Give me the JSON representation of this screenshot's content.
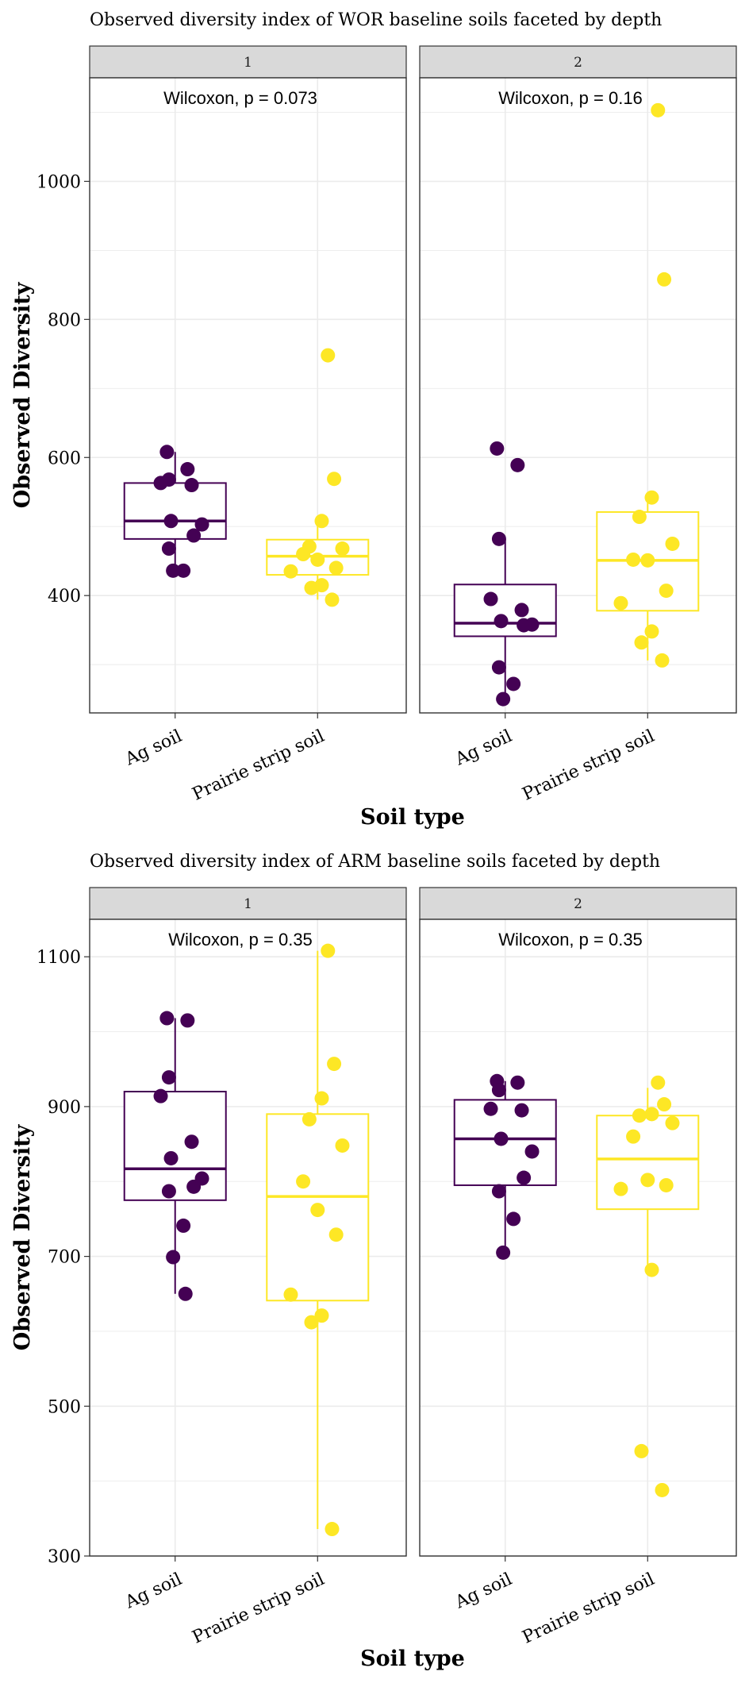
{
  "colors": {
    "ag": "#440154",
    "prairie": "#FDE725",
    "strip_fill": "#d9d9d9",
    "grid": "#ebebeb"
  },
  "chart_data": [
    {
      "type": "box",
      "title": "Observed diversity index of WOR baseline soils faceted by depth",
      "xlabel": "Soil type",
      "ylabel": "Observed Diversity",
      "categories": [
        "Ag soil",
        "Prairie strip soil"
      ],
      "ylim": [
        230,
        1150
      ],
      "yticks": [
        400,
        600,
        800,
        1000
      ],
      "grid": true,
      "legend": "none",
      "facets": [
        {
          "label": "1",
          "annotation": "Wilcoxon, p = 0.073",
          "groups": [
            {
              "category": "Ag soil",
              "q1": 482,
              "median": 508,
              "q3": 563,
              "whisker_low": 436,
              "whisker_high": 608,
              "points": [
                608,
                583,
                568,
                563,
                560,
                508,
                503,
                487,
                468,
                436,
                436
              ]
            },
            {
              "category": "Prairie strip soil",
              "q1": 430,
              "median": 457,
              "q3": 481,
              "whisker_low": 394,
              "whisker_high": 508,
              "points": [
                748,
                569,
                508,
                471,
                468,
                460,
                452,
                440,
                435,
                415,
                411,
                394
              ]
            }
          ]
        },
        {
          "label": "2",
          "annotation": "Wilcoxon, p = 0.16",
          "groups": [
            {
              "category": "Ag soil",
              "q1": 341,
              "median": 360,
              "q3": 416,
              "whisker_low": 246,
              "whisker_high": 482,
              "points": [
                613,
                589,
                482,
                395,
                379,
                363,
                358,
                357,
                296,
                272,
                250
              ]
            },
            {
              "category": "Prairie strip soil",
              "q1": 378,
              "median": 451,
              "q3": 521,
              "whisker_low": 306,
              "whisker_high": 542,
              "points": [
                1103,
                858,
                542,
                514,
                475,
                452,
                451,
                407,
                389,
                348,
                332,
                306
              ]
            }
          ]
        }
      ]
    },
    {
      "type": "box",
      "title": "Observed diversity index of ARM baseline soils faceted by depth",
      "xlabel": "Soil type",
      "ylabel": "Observed Diversity",
      "categories": [
        "Ag soil",
        "Prairie strip soil"
      ],
      "ylim": [
        300,
        1150
      ],
      "yticks": [
        300,
        500,
        700,
        900,
        1100
      ],
      "grid": true,
      "legend": "none",
      "facets": [
        {
          "label": "1",
          "annotation": "Wilcoxon, p = 0.35",
          "groups": [
            {
              "category": "Ag soil",
              "q1": 775,
              "median": 817,
              "q3": 920,
              "whisker_low": 650,
              "whisker_high": 1018,
              "points": [
                1018,
                1015,
                939,
                914,
                853,
                831,
                804,
                793,
                787,
                741,
                699,
                650
              ]
            },
            {
              "category": "Prairie strip soil",
              "q1": 641,
              "median": 780,
              "q3": 890,
              "whisker_low": 336,
              "whisker_high": 1108,
              "points": [
                1108,
                957,
                911,
                883,
                848,
                800,
                762,
                729,
                649,
                621,
                612,
                336
              ]
            }
          ]
        },
        {
          "label": "2",
          "annotation": "Wilcoxon, p = 0.35",
          "groups": [
            {
              "category": "Ag soil",
              "q1": 795,
              "median": 857,
              "q3": 909,
              "whisker_low": 705,
              "whisker_high": 934,
              "points": [
                934,
                932,
                922,
                897,
                895,
                857,
                840,
                805,
                787,
                750,
                705
              ]
            },
            {
              "category": "Prairie strip soil",
              "q1": 763,
              "median": 830,
              "q3": 888,
              "whisker_low": 682,
              "whisker_high": 925,
              "points": [
                932,
                903,
                890,
                888,
                878,
                860,
                802,
                795,
                790,
                682,
                440,
                388
              ]
            }
          ]
        }
      ]
    }
  ]
}
